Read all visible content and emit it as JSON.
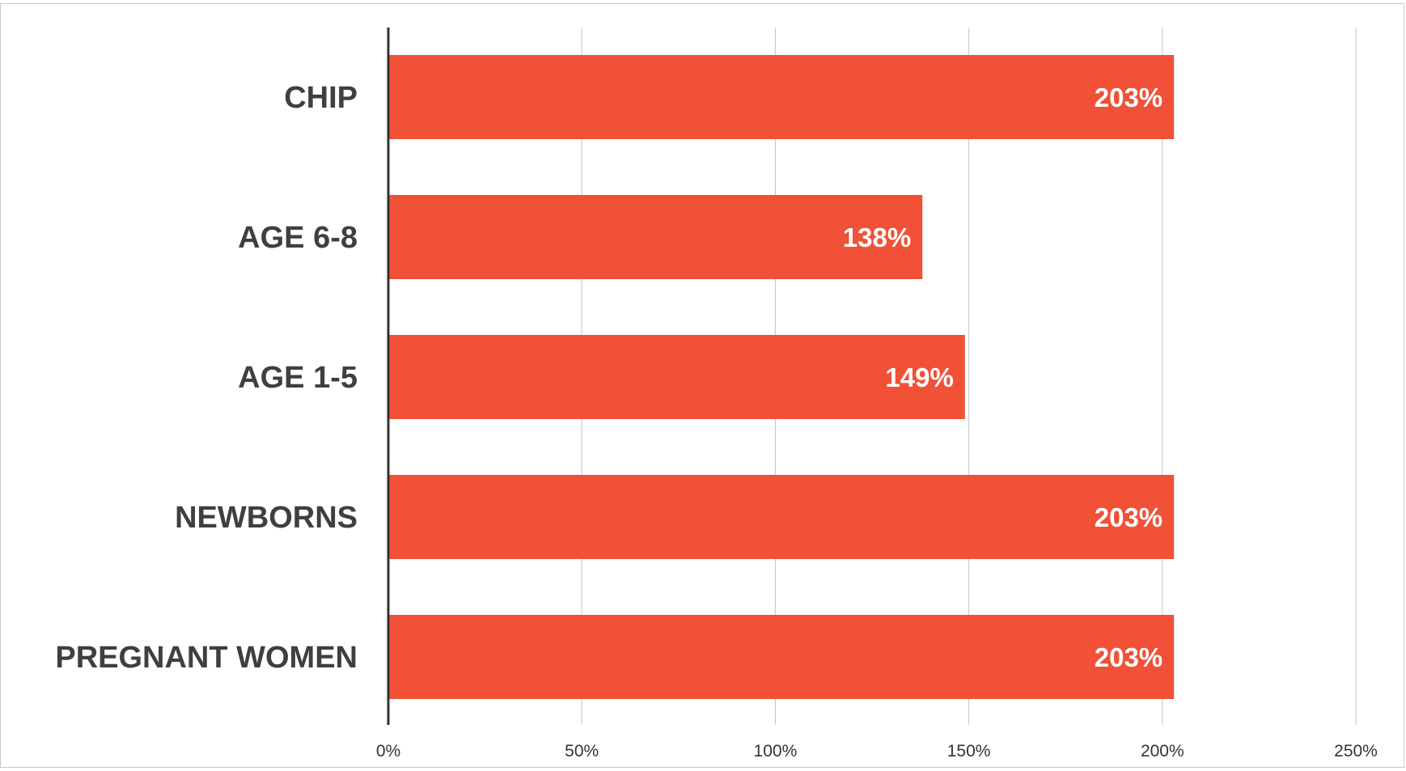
{
  "chart_data": {
    "type": "bar",
    "orientation": "horizontal",
    "categories": [
      "CHIP",
      "AGE 6-8",
      "AGE 1-5",
      "NEWBORNS",
      "PREGNANT WOMEN"
    ],
    "values": [
      203,
      138,
      149,
      203,
      203
    ],
    "data_labels": [
      "203%",
      "138%",
      "149%",
      "203%",
      "203%"
    ],
    "x_ticks": [
      "0%",
      "50%",
      "100%",
      "150%",
      "200%",
      "250%"
    ],
    "x_tick_values": [
      0,
      50,
      100,
      150,
      200,
      250
    ],
    "xlim": [
      0,
      250
    ],
    "grid": true,
    "legend": "none",
    "title": "",
    "xlabel": "",
    "ylabel": "",
    "colors": {
      "bar": "#f05137",
      "grid": "#c4c4c4",
      "axis": "#333333"
    }
  }
}
